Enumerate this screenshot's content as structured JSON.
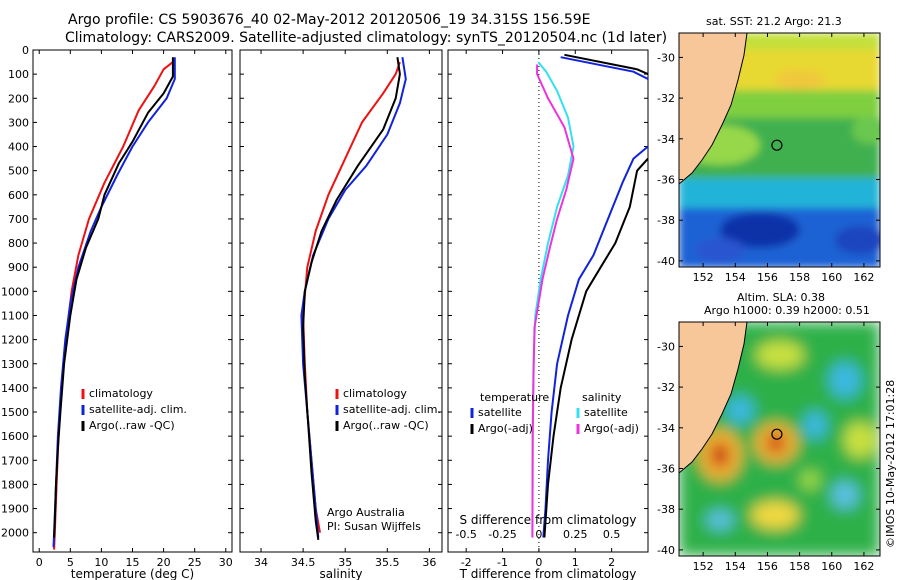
{
  "title_line1": "Argo profile: CS 5903676_40 02-May-2012 20120506_19 34.315S 156.59E",
  "title_line2": "Climatology: CARS2009. Satellite-adjusted climatology: synTS_20120504.nc (1d later)",
  "colors": {
    "climatology": "#ee1111",
    "satellite": "#1122dd",
    "argo": "#000000",
    "sat_sal": "#33e0f0",
    "argo_sal": "#ee33dd",
    "land": "#f7c79a"
  },
  "depth_ticks": [
    "0",
    "100",
    "200",
    "300",
    "400",
    "500",
    "600",
    "700",
    "800",
    "900",
    "1000",
    "1100",
    "1200",
    "1300",
    "1400",
    "1500",
    "1600",
    "1700",
    "1800",
    "1900",
    "2000"
  ],
  "chart_data": [
    {
      "type": "line",
      "xlabel": "temperature (deg C)",
      "xlim": [
        -1,
        31
      ],
      "ylim": [
        2080,
        0
      ],
      "xticks": [
        "0",
        "5",
        "10",
        "15",
        "20",
        "25",
        "30"
      ],
      "legend": [
        "climatology",
        "satellite-adj. clim.",
        "Argo(..raw -QC)"
      ],
      "series": [
        {
          "name": "climatology",
          "points": [
            [
              21.5,
              50
            ],
            [
              20,
              80
            ],
            [
              18.5,
              150
            ],
            [
              16,
              250
            ],
            [
              13.5,
              400
            ],
            [
              10.5,
              550
            ],
            [
              8,
              700
            ],
            [
              6.3,
              850
            ],
            [
              5.2,
              1000
            ],
            [
              4.3,
              1200
            ],
            [
              3.6,
              1400
            ],
            [
              3.1,
              1600
            ],
            [
              2.8,
              1800
            ],
            [
              2.5,
              2000
            ],
            [
              2.4,
              2070
            ]
          ]
        },
        {
          "name": "satellite-adj. clim.",
          "points": [
            [
              21.8,
              30
            ],
            [
              21.8,
              120
            ],
            [
              20.5,
              200
            ],
            [
              17.5,
              300
            ],
            [
              15,
              400
            ],
            [
              12.5,
              520
            ],
            [
              10,
              650
            ],
            [
              8.3,
              750
            ],
            [
              6.3,
              900
            ],
            [
              5,
              1050
            ],
            [
              4.2,
              1200
            ],
            [
              3.5,
              1400
            ],
            [
              3,
              1600
            ],
            [
              2.7,
              1800
            ],
            [
              2.4,
              2000
            ],
            [
              2.3,
              2060
            ]
          ]
        },
        {
          "name": "Argo(..raw -QC)",
          "points": [
            [
              21.5,
              30
            ],
            [
              21.5,
              110
            ],
            [
              20,
              180
            ],
            [
              17.5,
              260
            ],
            [
              15,
              380
            ],
            [
              12.8,
              470
            ],
            [
              10.5,
              600
            ],
            [
              9.5,
              700
            ],
            [
              7.5,
              820
            ],
            [
              6,
              950
            ],
            [
              5,
              1100
            ],
            [
              4,
              1300
            ],
            [
              3.4,
              1500
            ],
            [
              3,
              1650
            ],
            [
              2.7,
              1800
            ],
            [
              2.5,
              1950
            ],
            [
              2.4,
              2020
            ]
          ]
        }
      ]
    },
    {
      "type": "line",
      "xlabel": "salinity",
      "xlim": [
        33.75,
        36.15
      ],
      "ylim": [
        2080,
        0
      ],
      "xticks": [
        "34",
        "34.5",
        "35",
        "35.5",
        "36"
      ],
      "legend": [
        "climatology",
        "satellite-adj. clim.",
        "Argo(..raw -QC)"
      ],
      "series": [
        {
          "name": "climatology",
          "points": [
            [
              35.65,
              50
            ],
            [
              35.6,
              100
            ],
            [
              35.45,
              180
            ],
            [
              35.2,
              300
            ],
            [
              35.0,
              450
            ],
            [
              34.8,
              600
            ],
            [
              34.65,
              750
            ],
            [
              34.55,
              900
            ],
            [
              34.5,
              1100
            ],
            [
              34.52,
              1300
            ],
            [
              34.55,
              1500
            ],
            [
              34.6,
              1700
            ],
            [
              34.65,
              1900
            ],
            [
              34.7,
              2000
            ]
          ]
        },
        {
          "name": "satellite-adj. clim.",
          "points": [
            [
              35.68,
              30
            ],
            [
              35.72,
              120
            ],
            [
              35.65,
              220
            ],
            [
              35.5,
              350
            ],
            [
              35.25,
              480
            ],
            [
              35.0,
              580
            ],
            [
              34.8,
              700
            ],
            [
              34.62,
              850
            ],
            [
              34.52,
              1000
            ],
            [
              34.48,
              1100
            ],
            [
              34.5,
              1300
            ],
            [
              34.55,
              1500
            ],
            [
              34.6,
              1700
            ],
            [
              34.65,
              1900
            ],
            [
              34.68,
              2020
            ]
          ]
        },
        {
          "name": "Argo(..raw -QC)",
          "points": [
            [
              35.62,
              30
            ],
            [
              35.65,
              100
            ],
            [
              35.6,
              200
            ],
            [
              35.45,
              330
            ],
            [
              35.15,
              480
            ],
            [
              34.9,
              620
            ],
            [
              34.72,
              750
            ],
            [
              34.6,
              880
            ],
            [
              34.52,
              1000
            ],
            [
              34.5,
              1150
            ],
            [
              34.52,
              1350
            ],
            [
              34.56,
              1550
            ],
            [
              34.6,
              1750
            ],
            [
              34.65,
              1950
            ],
            [
              34.68,
              2030
            ]
          ]
        }
      ],
      "annotation": [
        "Argo Australia",
        "PI: Susan Wijffels"
      ]
    },
    {
      "type": "line",
      "xlabel": "T difference from climatology",
      "xlabel_top": "S difference from climatology",
      "xlim": [
        -2.5,
        3
      ],
      "ylim": [
        2080,
        0
      ],
      "xticks": [
        "-2",
        "-1",
        "0",
        "1",
        "2"
      ],
      "xticks_top": [
        "-0.5",
        "-0.25",
        "0",
        "0.25",
        "0.5"
      ],
      "legend_headers": [
        "temperature",
        "salinity"
      ],
      "legend": [
        "satellite",
        "Argo(-adj)",
        "satellite",
        "Argo(-adj)"
      ],
      "series": [
        {
          "name": "satellite",
          "points": [
            [
              0.6,
              30
            ],
            [
              2.6,
              90
            ],
            [
              3,
              120
            ]
          ]
        },
        {
          "name": "Argo(-adj)",
          "points": [
            [
              0.7,
              20
            ],
            [
              2.7,
              80
            ],
            [
              3,
              100
            ]
          ]
        },
        {
          "name": "satellite",
          "points": [
            [
              3,
              400
            ],
            [
              2.6,
              450
            ],
            [
              2.3,
              550
            ],
            [
              1.9,
              700
            ],
            [
              1.5,
              850
            ],
            [
              1.1,
              950
            ],
            [
              0.8,
              1100
            ],
            [
              0.5,
              1300
            ],
            [
              0.35,
              1500
            ],
            [
              0.25,
              1700
            ],
            [
              0.18,
              1900
            ],
            [
              0.12,
              2020
            ]
          ]
        },
        {
          "name": "Argo(-adj)",
          "points": [
            [
              3,
              450
            ],
            [
              2.7,
              500
            ],
            [
              2.5,
              650
            ],
            [
              2.1,
              800
            ],
            [
              1.7,
              900
            ],
            [
              1.3,
              1000
            ],
            [
              0.9,
              1200
            ],
            [
              0.6,
              1400
            ],
            [
              0.4,
              1600
            ],
            [
              0.25,
              1800
            ],
            [
              0.15,
              2020
            ]
          ]
        },
        {
          "name": "satellite",
          "points": [
            [
              -0.02,
              50
            ],
            [
              0.2,
              90
            ],
            [
              0.5,
              170
            ],
            [
              0.8,
              280
            ],
            [
              0.95,
              400
            ],
            [
              0.8,
              520
            ],
            [
              0.5,
              650
            ],
            [
              0.25,
              800
            ],
            [
              0.05,
              950
            ],
            [
              -0.1,
              1100
            ],
            [
              -0.15,
              1300
            ],
            [
              -0.17,
              1600
            ],
            [
              -0.18,
              2020
            ]
          ]
        },
        {
          "name": "Argo(-adj)",
          "points": [
            [
              -0.05,
              60
            ],
            [
              -0.05,
              100
            ],
            [
              0.25,
              200
            ],
            [
              0.7,
              320
            ],
            [
              0.95,
              450
            ],
            [
              0.75,
              580
            ],
            [
              0.5,
              700
            ],
            [
              0.3,
              820
            ],
            [
              0.1,
              950
            ],
            [
              -0.12,
              1150
            ],
            [
              -0.15,
              1350
            ],
            [
              -0.17,
              1600
            ],
            [
              -0.18,
              2020
            ]
          ]
        }
      ]
    },
    {
      "type": "heatmap",
      "title": "sat. SST: 21.2 Argo: 21.3",
      "xticks": [
        "152",
        "154",
        "156",
        "158",
        "160",
        "162"
      ],
      "yticks": [
        "-30",
        "-32",
        "-34",
        "-36",
        "-38",
        "-40"
      ],
      "xlim": [
        150.5,
        163
      ],
      "ylim": [
        -40.3,
        -28.8
      ],
      "marker": [
        156.59,
        -34.315
      ]
    },
    {
      "type": "heatmap",
      "title": "Altim. SLA: 0.38",
      "subtitle": "Argo h1000: 0.39 h2000: 0.51",
      "xticks": [
        "152",
        "154",
        "156",
        "158",
        "160",
        "162"
      ],
      "yticks": [
        "-30",
        "-32",
        "-34",
        "-36",
        "-38",
        "-40"
      ],
      "xlim": [
        150.5,
        163
      ],
      "ylim": [
        -40.3,
        -28.8
      ],
      "marker": [
        156.59,
        -34.315
      ]
    }
  ],
  "footer_text": "©IMOS 10-May-2012 17:01:28"
}
